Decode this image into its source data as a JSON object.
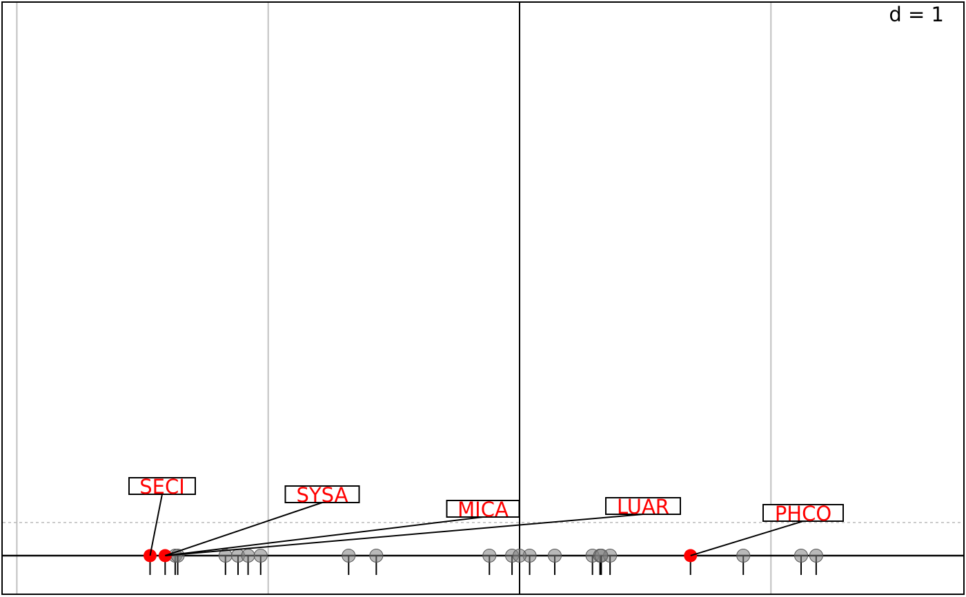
{
  "chart_data": {
    "type": "scatter",
    "title": "",
    "xlabel": "",
    "ylabel": "",
    "grid_step_label": "d = 1",
    "xlim": [
      -2.06,
      1.77
    ],
    "grid": true,
    "grid_x": [
      -2,
      -1,
      0,
      1
    ],
    "reference_line": "dashed horizontal line above the axis",
    "series": [
      {
        "color": "#808080",
        "values": [
          -1.37,
          -1.36,
          -1.17,
          -1.12,
          -1.08,
          -1.03,
          -0.68,
          -0.57,
          -0.12,
          -0.03,
          0.04,
          0.14,
          0.29,
          0.32,
          0.36,
          0.89,
          1.12,
          1.18,
          0.0,
          0.325
        ]
      },
      {
        "color": "#ff0000",
        "values": [
          -1.47,
          -1.41,
          0.68
        ]
      }
    ],
    "labels": [
      {
        "text": "SECI",
        "x": -1.47
      },
      {
        "text": "SYSA",
        "x": -1.41
      },
      {
        "text": "MICA",
        "x": -1.41
      },
      {
        "text": "LUAR",
        "x": -1.41
      },
      {
        "text": "PHCO",
        "x": 0.68
      }
    ],
    "colors": {
      "highlight": "#ff0000",
      "points": "#808080",
      "grid": "#c0c0c0",
      "axis": "#000000"
    }
  }
}
